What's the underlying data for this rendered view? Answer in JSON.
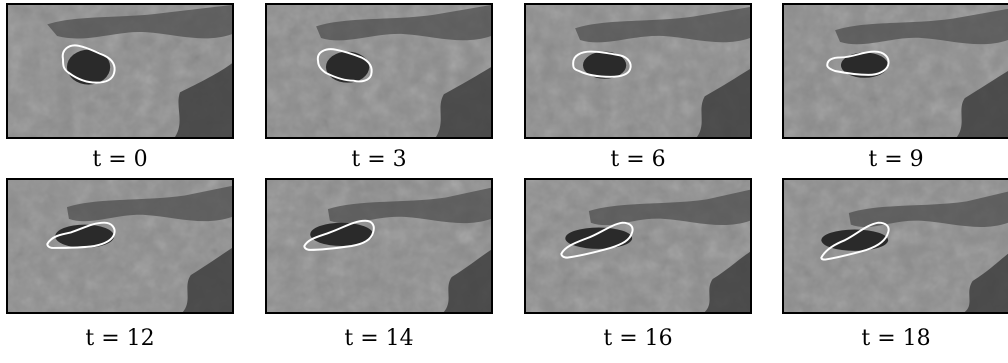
{
  "panels": [
    {
      "t_label": "t = 0"
    },
    {
      "t_label": "t = 3"
    },
    {
      "t_label": "t = 6"
    },
    {
      "t_label": "t = 9"
    },
    {
      "t_label": "t = 12"
    },
    {
      "t_label": "t = 14"
    },
    {
      "t_label": "t = 16"
    },
    {
      "t_label": "t = 18"
    }
  ],
  "colors": {
    "background_gray": "#8a8a8a",
    "dark_cloud": "#2a2a2a",
    "contour": "#ffffff",
    "frame": "#000000"
  }
}
